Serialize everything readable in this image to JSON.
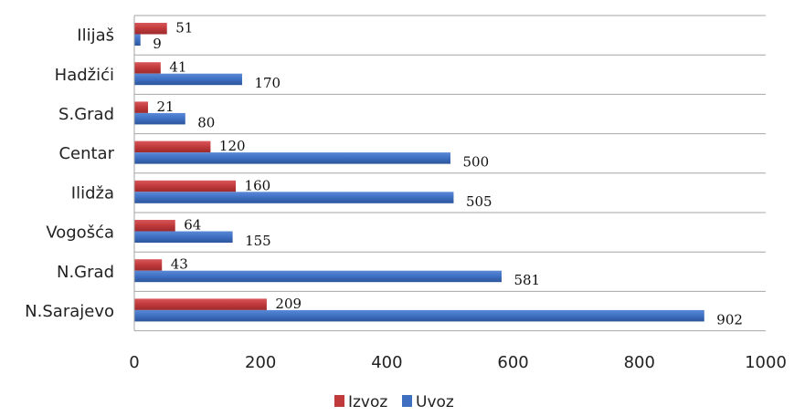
{
  "chart_data": {
    "type": "bar",
    "orientation": "horizontal",
    "categories": [
      "Ilijaš",
      "Hadžići",
      "S.Grad",
      "Centar",
      "Ilidža",
      "Vogošća",
      "N.Grad",
      "N.Sarajevo"
    ],
    "series": [
      {
        "name": "Izvoz",
        "color": "#c0393b",
        "values": [
          51,
          41,
          21,
          120,
          160,
          64,
          43,
          209
        ]
      },
      {
        "name": "Uvoz",
        "color": "#3e6fc1",
        "values": [
          9,
          170,
          80,
          500,
          505,
          155,
          581,
          902
        ]
      }
    ],
    "xlim": [
      0,
      1000
    ],
    "x_ticks": [
      0,
      200,
      400,
      600,
      800,
      1000
    ],
    "x_tick_labels": [
      "0",
      "200",
      "400",
      "600",
      "800",
      "1000"
    ],
    "grid": true,
    "legend_position": "bottom",
    "title": "",
    "xlabel": "",
    "ylabel": ""
  }
}
